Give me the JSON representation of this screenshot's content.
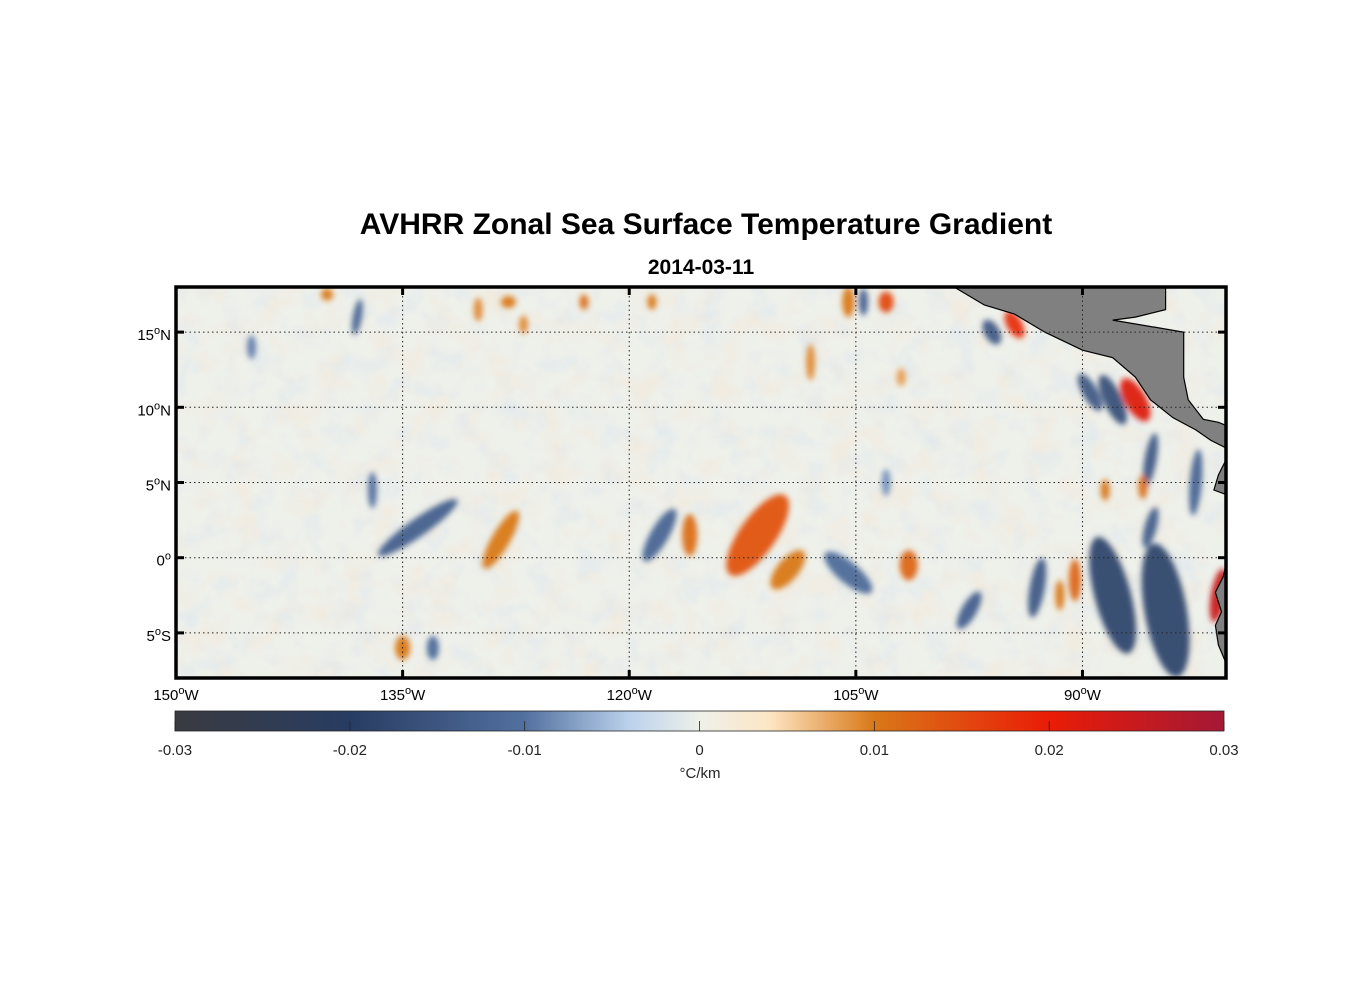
{
  "title": "AVHRR Zonal Sea Surface Temperature Gradient",
  "subtitle": "2014-03-11",
  "map": {
    "projection": "equirectangular",
    "lon_range": [
      -150,
      -80.5
    ],
    "lat_range": [
      -8,
      18
    ],
    "lon_ticks": [
      {
        "value": -150,
        "label": "150",
        "deg": "o",
        "hemi": "W"
      },
      {
        "value": -135,
        "label": "135",
        "deg": "o",
        "hemi": "W"
      },
      {
        "value": -120,
        "label": "120",
        "deg": "o",
        "hemi": "W"
      },
      {
        "value": -105,
        "label": "105",
        "deg": "o",
        "hemi": "W"
      },
      {
        "value": -90,
        "label": "90",
        "deg": "o",
        "hemi": "W"
      }
    ],
    "lat_ticks": [
      {
        "value": 15,
        "label": "15",
        "deg": "o",
        "hemi": "N"
      },
      {
        "value": 10,
        "label": "10",
        "deg": "o",
        "hemi": "N"
      },
      {
        "value": 5,
        "label": "5",
        "deg": "o",
        "hemi": "N"
      },
      {
        "value": 0,
        "label": "0",
        "deg": "o",
        "hemi": ""
      },
      {
        "value": -5,
        "label": "5",
        "deg": "o",
        "hemi": "S"
      }
    ],
    "grid": "dotted",
    "land_color": "#808080",
    "features": [
      {
        "lon": -111.5,
        "lat": 1.5,
        "value": 0.014,
        "rx": 1.2,
        "ry": 3.2,
        "angle": 35
      },
      {
        "lon": -109.5,
        "lat": -0.8,
        "value": 0.01,
        "rx": 0.7,
        "ry": 1.6,
        "angle": 40
      },
      {
        "lon": -128.5,
        "lat": 1.2,
        "value": 0.01,
        "rx": 0.6,
        "ry": 2.2,
        "angle": 30
      },
      {
        "lon": -116.0,
        "lat": 1.5,
        "value": 0.011,
        "rx": 0.5,
        "ry": 1.4,
        "angle": 0
      },
      {
        "lon": -118.0,
        "lat": 1.5,
        "value": -0.012,
        "rx": 0.6,
        "ry": 2.0,
        "angle": 30
      },
      {
        "lon": -105.5,
        "lat": -1.0,
        "value": -0.011,
        "rx": 0.7,
        "ry": 2.0,
        "angle": -50
      },
      {
        "lon": -134.0,
        "lat": 2.0,
        "value": -0.013,
        "rx": 0.6,
        "ry": 3.2,
        "angle": 55
      },
      {
        "lon": -101.5,
        "lat": -0.5,
        "value": 0.012,
        "rx": 0.6,
        "ry": 1.0,
        "angle": 0
      },
      {
        "lon": -88.0,
        "lat": -2.5,
        "value": -0.018,
        "rx": 1.2,
        "ry": 4.0,
        "angle": -15
      },
      {
        "lon": -84.5,
        "lat": -3.5,
        "value": -0.018,
        "rx": 1.4,
        "ry": 4.5,
        "angle": -10
      },
      {
        "lon": -90.5,
        "lat": -1.5,
        "value": 0.012,
        "rx": 0.4,
        "ry": 1.4,
        "angle": 0
      },
      {
        "lon": -91.5,
        "lat": -2.5,
        "value": 0.01,
        "rx": 0.3,
        "ry": 1.0,
        "angle": 0
      },
      {
        "lon": -93.0,
        "lat": -2.0,
        "value": -0.014,
        "rx": 0.5,
        "ry": 2.0,
        "angle": 10
      },
      {
        "lon": -81.0,
        "lat": -2.5,
        "value": 0.025,
        "rx": 0.5,
        "ry": 1.8,
        "angle": 10
      },
      {
        "lon": -86.5,
        "lat": 10.5,
        "value": 0.022,
        "rx": 0.7,
        "ry": 1.6,
        "angle": -30
      },
      {
        "lon": -88.0,
        "lat": 10.5,
        "value": -0.016,
        "rx": 0.6,
        "ry": 1.8,
        "angle": -25
      },
      {
        "lon": -89.5,
        "lat": 11.0,
        "value": -0.014,
        "rx": 0.5,
        "ry": 1.4,
        "angle": -30
      },
      {
        "lon": -94.5,
        "lat": 15.5,
        "value": 0.018,
        "rx": 0.5,
        "ry": 1.0,
        "angle": -30
      },
      {
        "lon": -96.0,
        "lat": 15.0,
        "value": -0.014,
        "rx": 0.5,
        "ry": 0.9,
        "angle": -30
      },
      {
        "lon": -85.5,
        "lat": 6.5,
        "value": -0.014,
        "rx": 0.4,
        "ry": 1.8,
        "angle": 10
      },
      {
        "lon": -86.0,
        "lat": 4.7,
        "value": 0.011,
        "rx": 0.3,
        "ry": 0.8,
        "angle": 0
      },
      {
        "lon": -88.5,
        "lat": 4.5,
        "value": 0.01,
        "rx": 0.3,
        "ry": 0.7,
        "angle": 0
      },
      {
        "lon": -85.5,
        "lat": 2.0,
        "value": -0.013,
        "rx": 0.4,
        "ry": 1.4,
        "angle": 15
      },
      {
        "lon": -82.5,
        "lat": 5.0,
        "value": -0.012,
        "rx": 0.4,
        "ry": 2.2,
        "angle": 5
      },
      {
        "lon": -135.0,
        "lat": -6.0,
        "value": 0.01,
        "rx": 0.5,
        "ry": 0.8,
        "angle": 0
      },
      {
        "lon": -133.0,
        "lat": -6.0,
        "value": -0.011,
        "rx": 0.4,
        "ry": 0.8,
        "angle": 0
      },
      {
        "lon": -137.0,
        "lat": 4.5,
        "value": -0.01,
        "rx": 0.3,
        "ry": 1.2,
        "angle": 0
      },
      {
        "lon": -130.0,
        "lat": 16.5,
        "value": 0.009,
        "rx": 0.3,
        "ry": 0.8,
        "angle": 0
      },
      {
        "lon": -127.0,
        "lat": 15.5,
        "value": 0.009,
        "rx": 0.3,
        "ry": 0.6,
        "angle": 0
      },
      {
        "lon": -128.0,
        "lat": 17.0,
        "value": 0.01,
        "rx": 0.5,
        "ry": 0.4,
        "angle": 0
      },
      {
        "lon": -123.0,
        "lat": 17.0,
        "value": 0.011,
        "rx": 0.3,
        "ry": 0.5,
        "angle": 0
      },
      {
        "lon": -118.5,
        "lat": 17.0,
        "value": 0.01,
        "rx": 0.3,
        "ry": 0.5,
        "angle": 0
      },
      {
        "lon": -105.5,
        "lat": 17.0,
        "value": 0.01,
        "rx": 0.4,
        "ry": 1.0,
        "angle": 0
      },
      {
        "lon": -103.0,
        "lat": 17.0,
        "value": 0.015,
        "rx": 0.5,
        "ry": 0.7,
        "angle": 0
      },
      {
        "lon": -104.5,
        "lat": 17.0,
        "value": -0.013,
        "rx": 0.3,
        "ry": 0.9,
        "angle": 0
      },
      {
        "lon": -108.0,
        "lat": 13.0,
        "value": 0.009,
        "rx": 0.3,
        "ry": 1.2,
        "angle": 0
      },
      {
        "lon": -138.0,
        "lat": 16.0,
        "value": -0.012,
        "rx": 0.3,
        "ry": 1.2,
        "angle": 10
      },
      {
        "lon": -145.0,
        "lat": 14.0,
        "value": -0.009,
        "rx": 0.3,
        "ry": 0.8,
        "angle": 0
      },
      {
        "lon": -140.0,
        "lat": 17.5,
        "value": 0.01,
        "rx": 0.4,
        "ry": 0.4,
        "angle": 0
      },
      {
        "lon": -102.0,
        "lat": 12.0,
        "value": 0.008,
        "rx": 0.3,
        "ry": 0.6,
        "angle": 0
      },
      {
        "lon": -97.5,
        "lat": -3.5,
        "value": -0.013,
        "rx": 0.5,
        "ry": 1.4,
        "angle": 30
      },
      {
        "lon": -103.0,
        "lat": 5.0,
        "value": -0.008,
        "rx": 0.3,
        "ry": 0.9,
        "angle": 0
      }
    ],
    "land": [
      {
        "name": "central-america",
        "points": [
          [
            -98.5,
            18
          ],
          [
            -84.5,
            18
          ],
          [
            -84.5,
            16.5
          ],
          [
            -86.5,
            16.0
          ],
          [
            -88.0,
            15.8
          ],
          [
            -83.3,
            15.0
          ],
          [
            -83.3,
            12.0
          ],
          [
            -83.0,
            10.5
          ],
          [
            -82.0,
            9.2
          ],
          [
            -81.0,
            9.0
          ],
          [
            -80.5,
            8.8
          ],
          [
            -80.5,
            7.3
          ],
          [
            -81.5,
            7.8
          ],
          [
            -82.5,
            8.5
          ],
          [
            -84.0,
            9.3
          ],
          [
            -85.5,
            10.5
          ],
          [
            -86.5,
            12.0
          ],
          [
            -88.0,
            13.3
          ],
          [
            -90.0,
            13.8
          ],
          [
            -92.5,
            15.0
          ],
          [
            -94.5,
            16.2
          ],
          [
            -96.5,
            16.8
          ],
          [
            -98.5,
            18
          ]
        ]
      },
      {
        "name": "colombia-coast",
        "points": [
          [
            -80.5,
            6.5
          ],
          [
            -81.0,
            5.5
          ],
          [
            -81.3,
            4.5
          ],
          [
            -80.5,
            4.2
          ]
        ]
      },
      {
        "name": "ecuador-peru-coast",
        "points": [
          [
            -80.5,
            -0.5
          ],
          [
            -80.7,
            -1.3
          ],
          [
            -81.2,
            -2.3
          ],
          [
            -80.8,
            -3.6
          ],
          [
            -81.2,
            -4.5
          ],
          [
            -81.0,
            -5.8
          ],
          [
            -80.5,
            -7.0
          ]
        ]
      }
    ]
  },
  "colorbar": {
    "min": -0.03,
    "max": 0.03,
    "ticks": [
      {
        "value": -0.03,
        "label": "-0.03"
      },
      {
        "value": -0.02,
        "label": "-0.02"
      },
      {
        "value": -0.01,
        "label": "-0.01"
      },
      {
        "value": 0,
        "label": "0"
      },
      {
        "value": 0.01,
        "label": "0.01"
      },
      {
        "value": 0.02,
        "label": "0.02"
      },
      {
        "value": 0.03,
        "label": "0.03"
      }
    ],
    "label": "°C/km",
    "stops": [
      {
        "value": -0.03,
        "color": "#3a3b40"
      },
      {
        "value": -0.02,
        "color": "#283c62"
      },
      {
        "value": -0.01,
        "color": "#52709f"
      },
      {
        "value": -0.004,
        "color": "#bcd2ec"
      },
      {
        "value": 0,
        "color": "#eef0ea"
      },
      {
        "value": 0.004,
        "color": "#fde6c4"
      },
      {
        "value": 0.01,
        "color": "#d97818"
      },
      {
        "value": 0.02,
        "color": "#ea1c06"
      },
      {
        "value": 0.03,
        "color": "#a41836"
      }
    ]
  }
}
